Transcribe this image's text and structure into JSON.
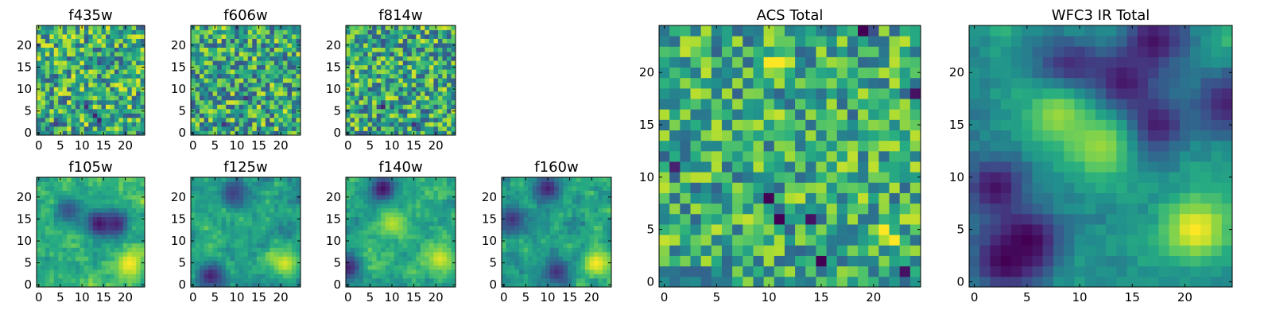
{
  "figure": {
    "colormap": "viridis",
    "colors": [
      "#440154",
      "#3b528b",
      "#21918c",
      "#5ec962",
      "#fde725"
    ],
    "background": "#ffffff"
  },
  "chart_data": [
    {
      "type": "heatmap",
      "title": "f435w",
      "grid": [
        25,
        25
      ],
      "xlim": [
        -0.5,
        24.5
      ],
      "ylim": [
        -0.5,
        24.5
      ],
      "xticks": [
        0,
        5,
        10,
        15,
        20
      ],
      "yticks": [
        0,
        5,
        10,
        15,
        20
      ],
      "xtick_labels": [
        "0",
        "5",
        "10",
        "15",
        "20"
      ],
      "ytick_labels": [
        "0",
        "5",
        "10",
        "15",
        "20"
      ],
      "features": [
        {
          "x": 13,
          "y": 4,
          "v": 0.1
        },
        {
          "x": 11,
          "y": 6,
          "v": 0.15
        },
        {
          "x": 14,
          "y": 3,
          "v": 0.1
        },
        {
          "x": 4,
          "y": 2,
          "v": 0.2
        }
      ],
      "seed": 11,
      "smooth": 0,
      "noise": 0.35,
      "mean": 0.62
    },
    {
      "type": "heatmap",
      "title": "f606w",
      "grid": [
        25,
        25
      ],
      "xlim": [
        -0.5,
        24.5
      ],
      "ylim": [
        -0.5,
        24.5
      ],
      "xticks": [
        0,
        5,
        10,
        15,
        20
      ],
      "yticks": [
        0,
        5,
        10,
        15,
        20
      ],
      "xtick_labels": [
        "0",
        "5",
        "10",
        "15",
        "20"
      ],
      "ytick_labels": [
        "0",
        "5",
        "10",
        "15",
        "20"
      ],
      "features": [
        {
          "x": 21,
          "y": 5,
          "v": 0.95
        },
        {
          "x": 12,
          "y": 8,
          "v": 0.15
        },
        {
          "x": 7,
          "y": 2,
          "v": 0.15
        }
      ],
      "seed": 23,
      "smooth": 0,
      "noise": 0.35,
      "mean": 0.6
    },
    {
      "type": "heatmap",
      "title": "f814w",
      "grid": [
        25,
        25
      ],
      "xlim": [
        -0.5,
        24.5
      ],
      "ylim": [
        -0.5,
        24.5
      ],
      "xticks": [
        0,
        5,
        10,
        15,
        20
      ],
      "yticks": [
        0,
        5,
        10,
        15,
        20
      ],
      "xtick_labels": [
        "0",
        "5",
        "10",
        "15",
        "20"
      ],
      "ytick_labels": [
        "0",
        "5",
        "10",
        "15",
        "20"
      ],
      "features": [
        {
          "x": 21,
          "y": 5,
          "v": 0.9
        },
        {
          "x": 8,
          "y": 6,
          "v": 0.1
        },
        {
          "x": 15,
          "y": 2,
          "v": 0.15
        }
      ],
      "seed": 37,
      "smooth": 0,
      "noise": 0.35,
      "mean": 0.6
    },
    {
      "type": "heatmap",
      "title": "f105w",
      "grid": [
        25,
        25
      ],
      "xlim": [
        -0.5,
        24.5
      ],
      "ylim": [
        -0.5,
        24.5
      ],
      "xticks": [
        0,
        5,
        10,
        15,
        20
      ],
      "yticks": [
        0,
        5,
        10,
        15,
        20
      ],
      "xtick_labels": [
        "0",
        "5",
        "10",
        "15",
        "20"
      ],
      "ytick_labels": [
        "0",
        "5",
        "10",
        "15",
        "20"
      ],
      "features": [
        {
          "x": 21,
          "y": 5,
          "v": 1.0
        },
        {
          "x": 14,
          "y": 14,
          "v": 0.05
        },
        {
          "x": 18,
          "y": 14,
          "v": 0.1
        },
        {
          "x": 7,
          "y": 17,
          "v": 0.25
        }
      ],
      "seed": 41,
      "smooth": 1,
      "noise": 0.28,
      "mean": 0.65
    },
    {
      "type": "heatmap",
      "title": "f125w",
      "grid": [
        25,
        25
      ],
      "xlim": [
        -0.5,
        24.5
      ],
      "ylim": [
        -0.5,
        24.5
      ],
      "xticks": [
        0,
        5,
        10,
        15,
        20
      ],
      "yticks": [
        0,
        5,
        10,
        15,
        20
      ],
      "xtick_labels": [
        "0",
        "5",
        "10",
        "15",
        "20"
      ],
      "ytick_labels": [
        "0",
        "5",
        "10",
        "15",
        "20"
      ],
      "features": [
        {
          "x": 21,
          "y": 5,
          "v": 0.95
        },
        {
          "x": 4,
          "y": 2,
          "v": 0.1
        },
        {
          "x": 9,
          "y": 21,
          "v": 0.2
        }
      ],
      "seed": 53,
      "smooth": 1,
      "noise": 0.3,
      "mean": 0.58
    },
    {
      "type": "heatmap",
      "title": "f140w",
      "grid": [
        25,
        25
      ],
      "xlim": [
        -0.5,
        24.5
      ],
      "ylim": [
        -0.5,
        24.5
      ],
      "xticks": [
        0,
        5,
        10,
        15,
        20
      ],
      "yticks": [
        0,
        5,
        10,
        15,
        20
      ],
      "xtick_labels": [
        "0",
        "5",
        "10",
        "15",
        "20"
      ],
      "ytick_labels": [
        "0",
        "5",
        "10",
        "15",
        "20"
      ],
      "features": [
        {
          "x": 8,
          "y": 22,
          "v": 0.05
        },
        {
          "x": 0,
          "y": 4,
          "v": 0.1
        },
        {
          "x": 21,
          "y": 6,
          "v": 0.95
        },
        {
          "x": 10,
          "y": 14,
          "v": 0.9
        }
      ],
      "seed": 67,
      "smooth": 1,
      "noise": 0.28,
      "mean": 0.62
    },
    {
      "type": "heatmap",
      "title": "f160w",
      "grid": [
        25,
        25
      ],
      "xlim": [
        -0.5,
        24.5
      ],
      "ylim": [
        -0.5,
        24.5
      ],
      "xticks": [
        0,
        5,
        10,
        15,
        20
      ],
      "yticks": [
        0,
        5,
        10,
        15,
        20
      ],
      "xtick_labels": [
        "0",
        "5",
        "10",
        "15",
        "20"
      ],
      "ytick_labels": [
        "0",
        "5",
        "10",
        "15",
        "20"
      ],
      "features": [
        {
          "x": 21,
          "y": 5,
          "v": 1.0
        },
        {
          "x": 10,
          "y": 22,
          "v": 0.1
        },
        {
          "x": 12,
          "y": 3,
          "v": 0.15
        },
        {
          "x": 2,
          "y": 15,
          "v": 0.15
        }
      ],
      "seed": 79,
      "smooth": 1,
      "noise": 0.3,
      "mean": 0.58
    },
    {
      "type": "heatmap",
      "title": "ACS Total",
      "grid": [
        25,
        25
      ],
      "xlim": [
        -0.5,
        24.5
      ],
      "ylim": [
        -0.5,
        24.5
      ],
      "xticks": [
        0,
        5,
        10,
        15,
        20
      ],
      "yticks": [
        0,
        5,
        10,
        15,
        20
      ],
      "xtick_labels": [
        "0",
        "5",
        "10",
        "15",
        "20"
      ],
      "ytick_labels": [
        "0",
        "5",
        "10",
        "15",
        "20"
      ],
      "features": [
        {
          "x": 19,
          "y": 24,
          "v": 0.0
        },
        {
          "x": 11,
          "y": 6,
          "v": 0.0
        },
        {
          "x": 10,
          "y": 8,
          "v": 0.0
        },
        {
          "x": 15,
          "y": 2,
          "v": 0.0
        },
        {
          "x": 14,
          "y": 6,
          "v": 0.05
        },
        {
          "x": 24,
          "y": 18,
          "v": 0.05
        },
        {
          "x": 1,
          "y": 11,
          "v": 0.1
        },
        {
          "x": 23,
          "y": 1,
          "v": 0.05
        },
        {
          "x": 21,
          "y": 5,
          "v": 1.0
        },
        {
          "x": 22,
          "y": 4,
          "v": 1.0
        },
        {
          "x": 11,
          "y": 21,
          "v": 1.0
        },
        {
          "x": 10,
          "y": 21,
          "v": 1.0
        }
      ],
      "seed": 97,
      "smooth": 0,
      "noise": 0.3,
      "mean": 0.62
    },
    {
      "type": "heatmap",
      "title": "WFC3 IR Total",
      "grid": [
        25,
        25
      ],
      "xlim": [
        -0.5,
        24.5
      ],
      "ylim": [
        -0.5,
        24.5
      ],
      "xticks": [
        0,
        5,
        10,
        15,
        20
      ],
      "yticks": [
        0,
        5,
        10,
        15,
        20
      ],
      "xtick_labels": [
        "0",
        "5",
        "10",
        "15",
        "20"
      ],
      "ytick_labels": [
        "0",
        "5",
        "10",
        "15",
        "20"
      ],
      "features": [
        {
          "x": 21,
          "y": 5,
          "v": 1.0
        },
        {
          "x": 3,
          "y": 2,
          "v": 0.0
        },
        {
          "x": 5,
          "y": 4,
          "v": 0.0
        },
        {
          "x": 2,
          "y": 9,
          "v": 0.05
        },
        {
          "x": 17,
          "y": 15,
          "v": 0.05
        },
        {
          "x": 14,
          "y": 19,
          "v": 0.05
        },
        {
          "x": 9,
          "y": 20,
          "v": 0.05
        },
        {
          "x": 17,
          "y": 23,
          "v": 0.05
        },
        {
          "x": 24,
          "y": 17,
          "v": 0.1
        },
        {
          "x": 12,
          "y": 13,
          "v": 0.85
        },
        {
          "x": 8,
          "y": 16,
          "v": 0.85
        }
      ],
      "seed": 113,
      "smooth": 2,
      "noise": 0.25,
      "mean": 0.52
    }
  ]
}
